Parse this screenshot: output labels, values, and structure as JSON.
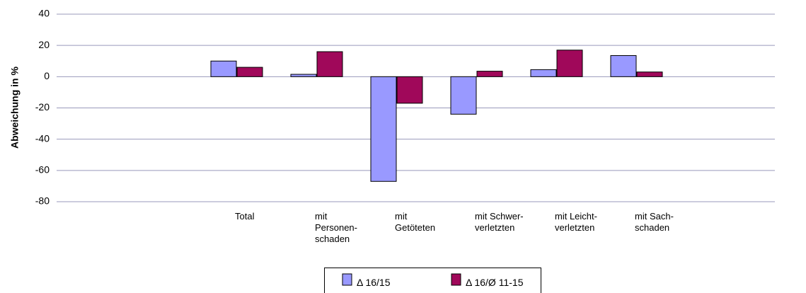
{
  "chart_data": {
    "type": "bar",
    "y_label": "Abweichung in %",
    "categories": [
      "Total",
      "mit\nPersonen-\nschaden",
      "mit\nGetöteten",
      "mit Schwer-\nverletzten",
      "mit Leicht-\nverletzten",
      "mit Sach-\nschaden"
    ],
    "series": [
      {
        "name": "Δ 16/15",
        "color": "#9999ff",
        "values": [
          10,
          1.5,
          -67,
          -24,
          4.5,
          13.5
        ]
      },
      {
        "name": "Δ 16/Ø 11-15",
        "color": "#a0085a",
        "values": [
          6,
          16,
          -17,
          3.5,
          17,
          3
        ]
      }
    ],
    "ylim": [
      -80,
      40
    ],
    "yticks": [
      -80,
      -60,
      -40,
      -20,
      0,
      20,
      40
    ],
    "grid": true,
    "legend": "bottom"
  }
}
